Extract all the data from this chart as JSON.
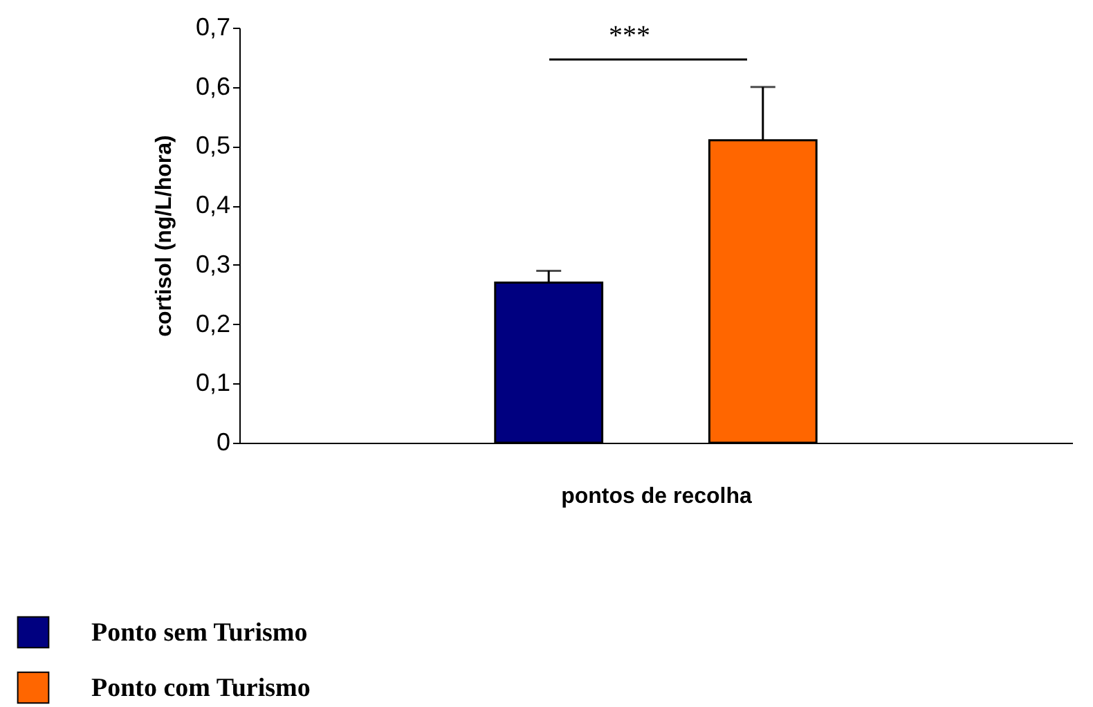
{
  "chart_data": {
    "type": "bar",
    "ylabel": "cortisol (ng/L/hora)",
    "xlabel": "pontos de recolha",
    "categories": [
      null
    ],
    "series": [
      {
        "name": "Ponto sem Turismo",
        "color": "#000080",
        "values": [
          0.27
        ],
        "errors": [
          0.02
        ]
      },
      {
        "name": "Ponto com Turismo",
        "color": "#ff6600",
        "values": [
          0.51
        ],
        "errors": [
          0.09
        ]
      }
    ],
    "ylim": [
      0,
      0.7
    ],
    "yticks": [
      0,
      {
        "value": 0.1,
        "label": "0,1"
      },
      {
        "value": 0.2,
        "label": "0,2"
      },
      {
        "value": 0.3,
        "label": "0,3"
      },
      {
        "value": 0.4,
        "label": "0,4"
      },
      {
        "value": 0.5,
        "label": "0,5"
      },
      {
        "value": 0.6,
        "label": "0,6"
      },
      {
        "value": 0.7,
        "label": "0,7"
      }
    ],
    "annotations": [
      "***"
    ],
    "legend": "bottom left",
    "grid": false
  }
}
